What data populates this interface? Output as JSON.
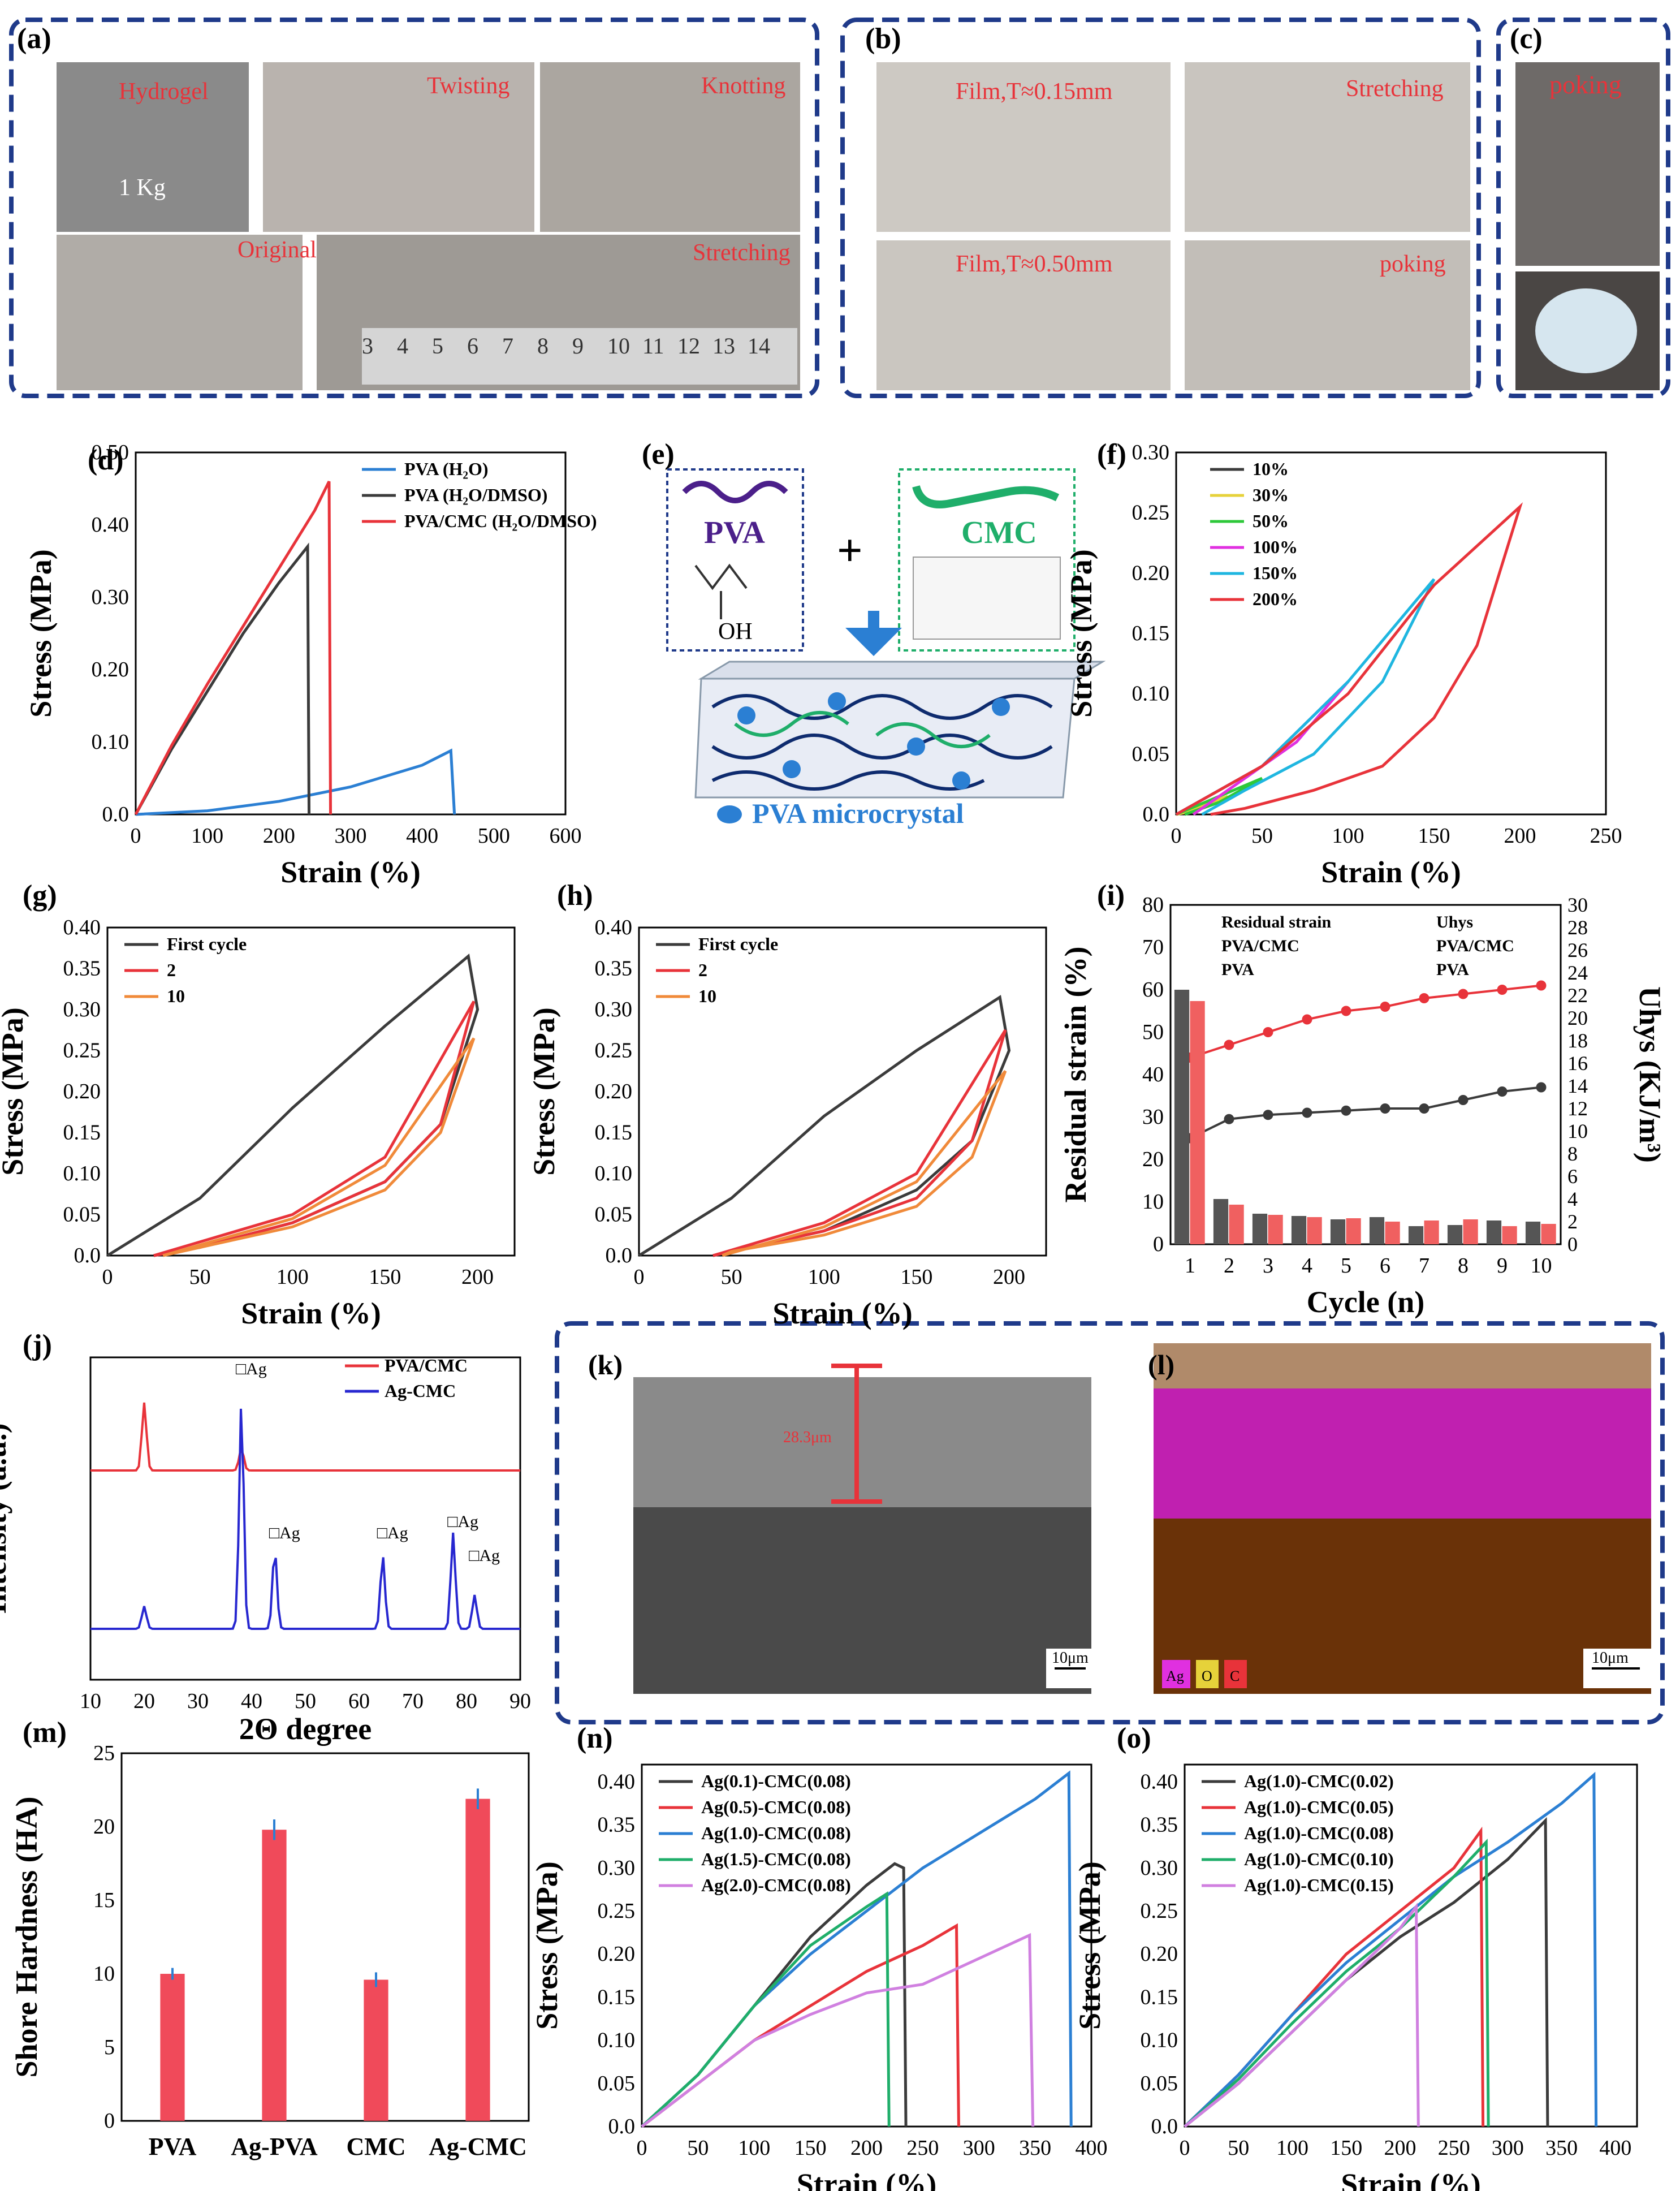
{
  "photos": {
    "a": {
      "label": "(a)",
      "captions": [
        "Hydrogel",
        "1 Kg",
        "Twisting",
        "Knotting",
        "Original",
        "Stretching"
      ],
      "ruler": [
        "3",
        "4",
        "5",
        "6",
        "7",
        "8",
        "9",
        "10",
        "11",
        "12",
        "13",
        "14"
      ]
    },
    "b": {
      "label": "(b)",
      "captions": [
        "Film,T≈0.15mm",
        "Stretching",
        "Film,T≈0.50mm",
        "poking"
      ]
    },
    "c": {
      "label": "(c)",
      "captions": [
        "poking"
      ]
    }
  },
  "schematic_e": {
    "label": "(e)",
    "pva": "PVA",
    "cmc": "CMC",
    "plus": "+",
    "oh": "OH",
    "micro": "PVA microcrystal"
  },
  "sem": {
    "k": {
      "label": "(k)",
      "thickness": "28.3μm",
      "scale": "10μm"
    },
    "l": {
      "label": "(l)",
      "scale": "10μm",
      "legend": [
        "Ag",
        "O",
        "C"
      ]
    }
  },
  "colors": {
    "accent": "#1f3a8a",
    "red": "#e8333a",
    "black": "#3b3b3b",
    "blue": "#2b7fd3"
  },
  "chart_data": [
    {
      "panel": "(d)",
      "type": "line",
      "xlabel": "Strain (%)",
      "ylabel": "Stress (MPa)",
      "xlim": [
        0,
        600
      ],
      "ylim": [
        0,
        0.5
      ],
      "xticks": [
        0,
        100,
        200,
        300,
        400,
        500,
        600
      ],
      "yticks": [
        0.0,
        0.1,
        0.2,
        0.3,
        0.4,
        0.5
      ],
      "series": [
        {
          "name": "PVA        (H₂O)",
          "color": "#2b7fd3",
          "x": [
            0,
            100,
            200,
            300,
            400,
            440,
            445
          ],
          "y": [
            0,
            0.005,
            0.018,
            0.038,
            0.068,
            0.088,
            0
          ]
        },
        {
          "name": "PVA        (H₂O/DMSO)",
          "color": "#3b3b3b",
          "x": [
            0,
            50,
            100,
            150,
            200,
            240,
            242
          ],
          "y": [
            0,
            0.09,
            0.17,
            0.25,
            0.32,
            0.37,
            0
          ]
        },
        {
          "name": "PVA/CMC (H₂O/DMSO)",
          "color": "#e8333a",
          "x": [
            0,
            50,
            100,
            150,
            200,
            250,
            270,
            272
          ],
          "y": [
            0,
            0.095,
            0.18,
            0.26,
            0.34,
            0.42,
            0.46,
            0
          ]
        }
      ]
    },
    {
      "panel": "(f)",
      "type": "line",
      "xlabel": "Strain (%)",
      "ylabel": "Stress (MPa)",
      "xlim": [
        0,
        250
      ],
      "ylim": [
        0,
        0.3
      ],
      "xticks": [
        0,
        50,
        100,
        150,
        200,
        250
      ],
      "yticks": [
        0.0,
        0.05,
        0.1,
        0.15,
        0.2,
        0.25,
        0.3
      ],
      "series": [
        {
          "name": "10%",
          "color": "#3b3b3b",
          "x": [
            0,
            10,
            0
          ],
          "y": [
            0,
            0.004,
            0
          ]
        },
        {
          "name": "30%",
          "color": "#e6d23a",
          "x": [
            0,
            30,
            10,
            0
          ],
          "y": [
            0,
            0.015,
            0.003,
            0
          ]
        },
        {
          "name": "50%",
          "color": "#2ec83a",
          "x": [
            0,
            50,
            25,
            5
          ],
          "y": [
            0,
            0.03,
            0.01,
            0
          ]
        },
        {
          "name": "100%",
          "color": "#e030e0",
          "x": [
            0,
            50,
            100,
            70,
            30,
            10
          ],
          "y": [
            0,
            0.04,
            0.11,
            0.06,
            0.02,
            0
          ]
        },
        {
          "name": "150%",
          "color": "#1fb6e0",
          "x": [
            0,
            50,
            100,
            150,
            120,
            80,
            40,
            15
          ],
          "y": [
            0,
            0.04,
            0.11,
            0.195,
            0.11,
            0.05,
            0.02,
            0
          ]
        },
        {
          "name": "200%",
          "color": "#e8333a",
          "x": [
            0,
            50,
            100,
            150,
            200,
            175,
            150,
            120,
            80,
            40,
            20
          ],
          "y": [
            0,
            0.04,
            0.1,
            0.19,
            0.255,
            0.14,
            0.08,
            0.04,
            0.02,
            0.005,
            0
          ]
        }
      ]
    },
    {
      "panel": "(g)",
      "type": "line",
      "xlabel": "Strain (%)",
      "ylabel": "Stress (MPa)",
      "xlim": [
        0,
        220
      ],
      "ylim": [
        0,
        0.4
      ],
      "xticks": [
        0,
        50,
        100,
        150,
        200
      ],
      "yticks": [
        0.0,
        0.05,
        0.1,
        0.15,
        0.2,
        0.25,
        0.3,
        0.35,
        0.4
      ],
      "series": [
        {
          "name": "First cycle",
          "color": "#3b3b3b",
          "x": [
            0,
            50,
            100,
            150,
            195,
            200,
            180,
            150,
            100,
            50,
            25
          ],
          "y": [
            0,
            0.07,
            0.18,
            0.28,
            0.365,
            0.3,
            0.16,
            0.09,
            0.04,
            0.01,
            0
          ]
        },
        {
          "name": "2",
          "color": "#e8333a",
          "x": [
            25,
            100,
            150,
            198,
            180,
            150,
            100,
            50,
            25
          ],
          "y": [
            0,
            0.05,
            0.12,
            0.31,
            0.16,
            0.09,
            0.04,
            0.01,
            0
          ]
        },
        {
          "name": "10",
          "color": "#f08a3a",
          "x": [
            30,
            100,
            150,
            198,
            180,
            150,
            100,
            50,
            30
          ],
          "y": [
            0,
            0.045,
            0.11,
            0.265,
            0.15,
            0.08,
            0.035,
            0.01,
            0
          ]
        }
      ]
    },
    {
      "panel": "(h)",
      "type": "line",
      "xlabel": "Strain (%)",
      "ylabel": "Stress (MPa)",
      "xlim": [
        0,
        220
      ],
      "ylim": [
        0,
        0.4
      ],
      "xticks": [
        0,
        50,
        100,
        150,
        200
      ],
      "yticks": [
        0.0,
        0.05,
        0.1,
        0.15,
        0.2,
        0.25,
        0.3,
        0.35,
        0.4
      ],
      "series": [
        {
          "name": "First cycle",
          "color": "#3b3b3b",
          "x": [
            0,
            50,
            100,
            150,
            195,
            200,
            180,
            150,
            100,
            50,
            40
          ],
          "y": [
            0,
            0.07,
            0.17,
            0.25,
            0.315,
            0.25,
            0.14,
            0.08,
            0.03,
            0.005,
            0
          ]
        },
        {
          "name": "2",
          "color": "#e8333a",
          "x": [
            40,
            100,
            150,
            198,
            180,
            150,
            100,
            50,
            40
          ],
          "y": [
            0,
            0.04,
            0.1,
            0.275,
            0.14,
            0.07,
            0.03,
            0.005,
            0
          ]
        },
        {
          "name": "10",
          "color": "#f08a3a",
          "x": [
            45,
            100,
            150,
            198,
            180,
            150,
            100,
            50,
            45
          ],
          "y": [
            0,
            0.035,
            0.09,
            0.225,
            0.12,
            0.06,
            0.025,
            0.005,
            0
          ]
        }
      ]
    },
    {
      "panel": "(i)",
      "type": "bar+line",
      "xlabel": "Cycle (n)",
      "ylabel": "Residual strain (%)",
      "y2label": "Uhys (KJ/m³)",
      "ylim": [
        0,
        80
      ],
      "y2lim": [
        0,
        30
      ],
      "categories": [
        "1",
        "2",
        "3",
        "4",
        "5",
        "6",
        "7",
        "8",
        "9",
        "10"
      ],
      "legend": [
        "Residual strain",
        "PVA/CMC",
        "PVA",
        "Uhys",
        "PVA/CMC",
        "PVA"
      ],
      "series": [
        {
          "name": "PVA/CMC",
          "kind": "line",
          "color": "#3b3b3b",
          "values": [
            25,
            29.5,
            30.5,
            31,
            31.5,
            32,
            32,
            34,
            36,
            37
          ]
        },
        {
          "name": "PVA",
          "kind": "line",
          "color": "#e8333a",
          "values": [
            44,
            47,
            50,
            53,
            55,
            56,
            58,
            59,
            60,
            61
          ]
        },
        {
          "name": "PVA/CMC",
          "kind": "bar",
          "color": "#555555",
          "values": [
            22.5,
            4,
            2.7,
            2.5,
            2.2,
            2.4,
            1.6,
            1.7,
            2.1,
            2
          ]
        },
        {
          "name": "PVA",
          "kind": "bar",
          "color": "#f06060",
          "values": [
            21.5,
            3.5,
            2.6,
            2.4,
            2.3,
            2,
            2.1,
            2.2,
            1.6,
            1.8
          ]
        }
      ]
    },
    {
      "panel": "(j)",
      "type": "line",
      "xlabel": "2Θ degree",
      "ylabel": "Intensity (a.u.)",
      "xlim": [
        10,
        90
      ],
      "xticks": [
        10,
        20,
        30,
        40,
        50,
        60,
        70,
        80,
        90
      ],
      "peaks": [
        "□Ag",
        "□Ag",
        "□Ag",
        "□Ag",
        "□Ag"
      ],
      "series": [
        {
          "name": "PVA/CMC",
          "color": "#e8333a"
        },
        {
          "name": "Ag-CMC",
          "color": "#2727d0"
        }
      ]
    },
    {
      "panel": "(m)",
      "type": "bar",
      "xlabel": "",
      "ylabel": "Shore Hardness (HA)",
      "ylim": [
        0,
        25
      ],
      "yticks": [
        0,
        5,
        10,
        15,
        20,
        25
      ],
      "categories": [
        "PVA",
        "Ag-PVA",
        "CMC",
        "Ag-CMC"
      ],
      "values": [
        10,
        19.8,
        9.6,
        21.9
      ],
      "errors": [
        0.4,
        0.7,
        0.5,
        0.7
      ]
    },
    {
      "panel": "(n)",
      "type": "line",
      "xlabel": "Strain (%)",
      "ylabel": "Stress (MPa)",
      "xlim": [
        0,
        400
      ],
      "ylim": [
        0,
        0.42
      ],
      "xticks": [
        0,
        50,
        100,
        150,
        200,
        250,
        300,
        350,
        400
      ],
      "yticks": [
        0.0,
        0.05,
        0.1,
        0.15,
        0.2,
        0.25,
        0.3,
        0.35,
        0.4
      ],
      "series": [
        {
          "name": "Ag(0.1)-CMC(0.08)",
          "hl": "0.1",
          "color": "#3b3b3b",
          "x": [
            0,
            50,
            100,
            150,
            200,
            225,
            233,
            235
          ],
          "y": [
            0,
            0.06,
            0.14,
            0.22,
            0.28,
            0.305,
            0.3,
            0
          ]
        },
        {
          "name": "Ag(0.5)-CMC(0.08)",
          "hl": "0.5",
          "color": "#e8333a",
          "x": [
            0,
            50,
            100,
            150,
            200,
            250,
            280,
            282
          ],
          "y": [
            0,
            0.05,
            0.1,
            0.14,
            0.18,
            0.21,
            0.233,
            0
          ]
        },
        {
          "name": "Ag(1.0)-CMC(0.08)",
          "hl": "1.0",
          "color": "#2b7fd3",
          "x": [
            0,
            50,
            100,
            150,
            200,
            250,
            300,
            350,
            380,
            382
          ],
          "y": [
            0,
            0.06,
            0.14,
            0.2,
            0.25,
            0.3,
            0.34,
            0.38,
            0.41,
            0
          ]
        },
        {
          "name": "Ag(1.5)-CMC(0.08)",
          "hl": "1.5",
          "color": "#1fae6a",
          "x": [
            0,
            50,
            100,
            150,
            200,
            218,
            220
          ],
          "y": [
            0,
            0.06,
            0.14,
            0.21,
            0.255,
            0.27,
            0
          ]
        },
        {
          "name": "Ag(2.0)-CMC(0.08)",
          "hl": "2.0",
          "color": "#d080e0",
          "x": [
            0,
            50,
            100,
            150,
            200,
            250,
            300,
            345,
            348
          ],
          "y": [
            0,
            0.05,
            0.1,
            0.13,
            0.155,
            0.165,
            0.195,
            0.222,
            0
          ]
        }
      ]
    },
    {
      "panel": "(o)",
      "type": "line",
      "xlabel": "Strain (%)",
      "ylabel": "Stress (MPa)",
      "xlim": [
        0,
        420
      ],
      "ylim": [
        0,
        0.42
      ],
      "xticks": [
        0,
        50,
        100,
        150,
        200,
        250,
        300,
        350,
        400
      ],
      "yticks": [
        0.0,
        0.05,
        0.1,
        0.15,
        0.2,
        0.25,
        0.3,
        0.35,
        0.4
      ],
      "series": [
        {
          "name": "Ag(1.0)-CMC(0.02)",
          "hl": "0.02",
          "color": "#3b3b3b",
          "x": [
            0,
            50,
            100,
            150,
            200,
            250,
            300,
            335,
            337
          ],
          "y": [
            0,
            0.05,
            0.11,
            0.17,
            0.22,
            0.26,
            0.31,
            0.355,
            0
          ]
        },
        {
          "name": "Ag(1.0)-CMC(0.05)",
          "hl": "0.05",
          "color": "#e8333a",
          "x": [
            0,
            50,
            100,
            150,
            200,
            250,
            275,
            277
          ],
          "y": [
            0,
            0.06,
            0.13,
            0.2,
            0.25,
            0.3,
            0.343,
            0
          ]
        },
        {
          "name": "Ag(1.0)-CMC(0.08)",
          "hl": "0.08",
          "color": "#2b7fd3",
          "x": [
            0,
            50,
            100,
            150,
            200,
            250,
            300,
            350,
            380,
            382
          ],
          "y": [
            0,
            0.06,
            0.13,
            0.19,
            0.24,
            0.29,
            0.33,
            0.375,
            0.408,
            0
          ]
        },
        {
          "name": "Ag(1.0)-CMC(0.10)",
          "hl": "0.10",
          "color": "#1fae6a",
          "x": [
            0,
            50,
            100,
            150,
            200,
            250,
            280,
            282
          ],
          "y": [
            0,
            0.055,
            0.12,
            0.18,
            0.23,
            0.29,
            0.33,
            0
          ]
        },
        {
          "name": "Ag(1.0)-CMC(0.15)",
          "hl": "0.15",
          "color": "#d080e0",
          "x": [
            0,
            50,
            100,
            150,
            200,
            215,
            217
          ],
          "y": [
            0,
            0.05,
            0.11,
            0.17,
            0.23,
            0.255,
            0
          ]
        }
      ]
    }
  ]
}
